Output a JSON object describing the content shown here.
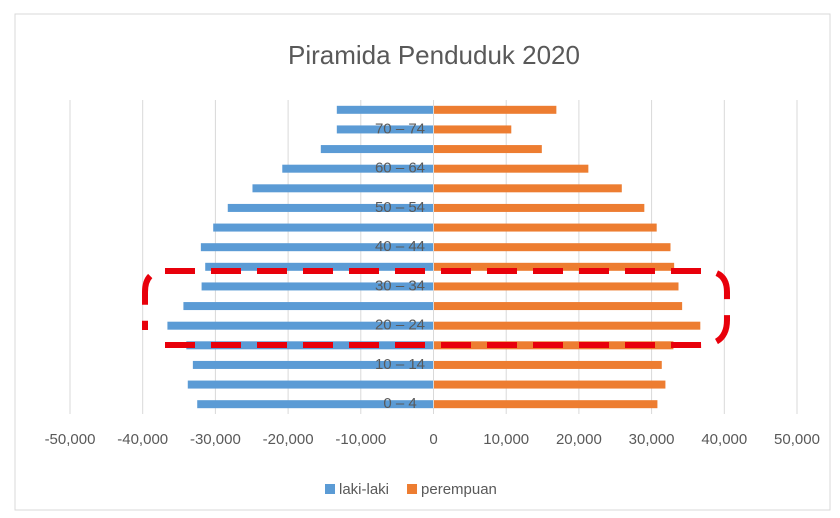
{
  "chart_data": {
    "type": "bar",
    "orientation": "horizontal",
    "title": "Piramida Penduduk 2020",
    "categories": [
      "0 – 4",
      null,
      "10 – 14",
      null,
      "20 – 24",
      null,
      "30 – 34",
      null,
      "40 – 44",
      null,
      "50 – 54",
      null,
      "60 – 64",
      null,
      "70 – 74",
      null
    ],
    "series": [
      {
        "name": "laki-laki",
        "color": "#5b9bd5",
        "values": [
          -32500,
          -33800,
          -33100,
          -34000,
          -36600,
          -34400,
          -31900,
          -31400,
          -32000,
          -30300,
          -28300,
          -24900,
          -20800,
          -15500,
          -13300,
          -13300
        ]
      },
      {
        "name": "perempuan",
        "color": "#ed7d31",
        "values": [
          30800,
          31900,
          31400,
          33000,
          36700,
          34200,
          33700,
          33100,
          32600,
          30700,
          29000,
          25900,
          21300,
          14900,
          10700,
          16900
        ]
      }
    ],
    "xlim": [
      -50000,
      50000
    ],
    "xticks": [
      {
        "value": -50000,
        "label": "-50,000"
      },
      {
        "value": -40000,
        "label": "-40,000"
      },
      {
        "value": -30000,
        "label": "-30,000"
      },
      {
        "value": -20000,
        "label": "-20,000"
      },
      {
        "value": -10000,
        "label": "-10,000"
      },
      0,
      {
        "value": 10000,
        "label": "10,000"
      },
      {
        "value": 20000,
        "label": "20,000"
      },
      {
        "value": 30000,
        "label": "30,000"
      },
      {
        "value": 40000,
        "label": "40,000"
      },
      {
        "value": 50000,
        "label": "50,000"
      }
    ],
    "grid": true,
    "legend": "bottom"
  }
}
